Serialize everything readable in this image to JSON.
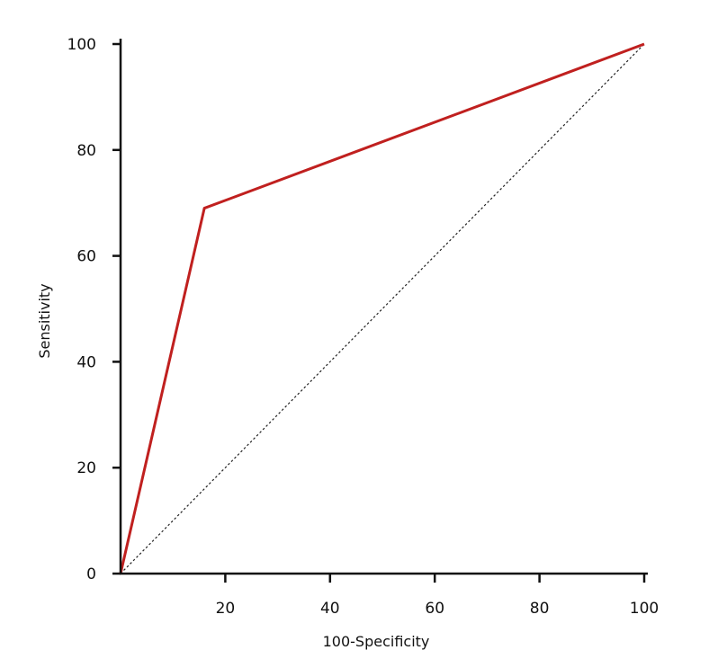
{
  "chart_data": {
    "type": "line",
    "title": "",
    "xlabel": "100-Specificity",
    "ylabel": "Sensitivity",
    "xlim": [
      0,
      100
    ],
    "ylim": [
      0,
      100
    ],
    "x_ticks": [
      "20",
      "40",
      "60",
      "80",
      "100"
    ],
    "y_ticks": [
      "0",
      "20",
      "40",
      "60",
      "80",
      "100"
    ],
    "grid": false,
    "series": [
      {
        "style": "solid",
        "color": "#c0201f",
        "x": [
          0,
          16,
          100
        ],
        "y": [
          0,
          69,
          100
        ]
      },
      {
        "style": "dotted",
        "color": "#222222",
        "x": [
          0,
          100
        ],
        "y": [
          0,
          100
        ]
      }
    ]
  }
}
